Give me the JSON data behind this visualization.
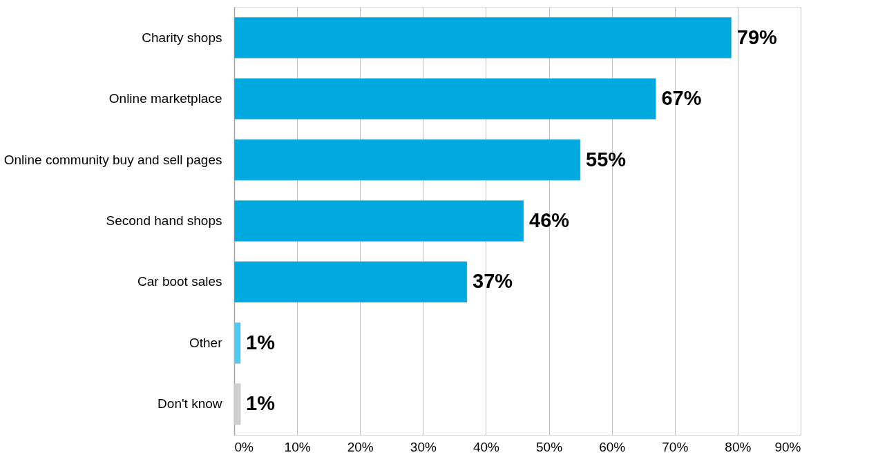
{
  "chart_data": {
    "type": "bar",
    "orientation": "horizontal",
    "categories": [
      "Charity shops",
      "Online marketplace",
      "Online community buy and sell pages",
      "Second hand shops",
      "Car boot sales",
      "Other",
      "Don't know"
    ],
    "values": [
      79,
      67,
      55,
      46,
      37,
      1,
      1
    ],
    "colors": [
      "#00a9e0",
      "#00a9e0",
      "#00a9e0",
      "#00a9e0",
      "#00a9e0",
      "#4fcbf2",
      "#d0d0d0"
    ],
    "value_labels": [
      "79%",
      "67%",
      "55%",
      "46%",
      "37%",
      "1%",
      "1%"
    ],
    "xlim": [
      0,
      90
    ],
    "xticks": [
      {
        "value": 0,
        "label": "0%"
      },
      {
        "value": 10,
        "label": "10%"
      },
      {
        "value": 20,
        "label": "20%"
      },
      {
        "value": 30,
        "label": "30%"
      },
      {
        "value": 40,
        "label": "40%"
      },
      {
        "value": 50,
        "label": "50%"
      },
      {
        "value": 60,
        "label": "60%"
      },
      {
        "value": 70,
        "label": "70%"
      },
      {
        "value": 80,
        "label": "80%"
      },
      {
        "value": 90,
        "label": "90%"
      }
    ],
    "grid": "x"
  }
}
